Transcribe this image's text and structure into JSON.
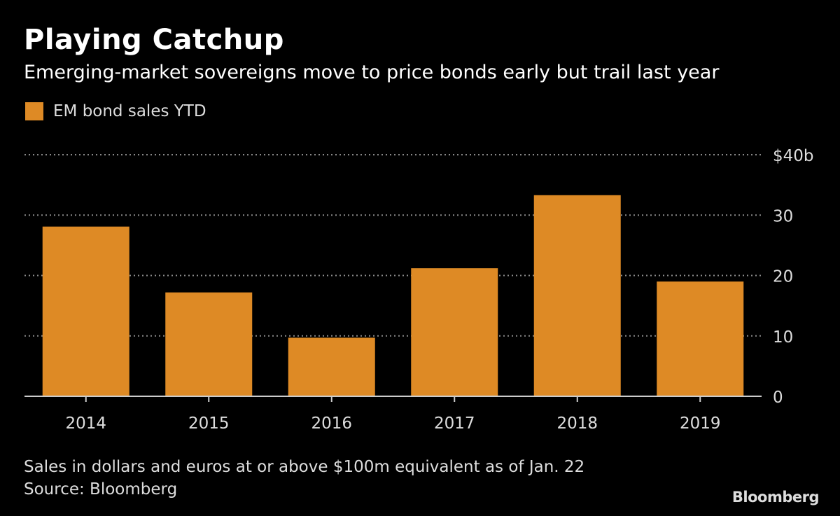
{
  "chart_data": {
    "type": "bar",
    "title": "Playing Catchup",
    "subtitle": "Emerging-market sovereigns move to price bonds early but trail last year",
    "legend": [
      {
        "name": "EM bond sales YTD",
        "color": "#DE8A25"
      }
    ],
    "legend_placement": "top-left",
    "categories": [
      "2014",
      "2015",
      "2016",
      "2017",
      "2018",
      "2019"
    ],
    "series": [
      {
        "name": "EM bond sales YTD",
        "values": [
          28.1,
          17.2,
          9.7,
          21.2,
          33.3,
          19.0
        ]
      }
    ],
    "ylim": [
      0,
      40
    ],
    "yticks": [
      0,
      10,
      20,
      30,
      40
    ],
    "ytick_labels": [
      "0",
      "10",
      "20",
      "30",
      "$40b"
    ],
    "y_axis_side": "right",
    "grid": true,
    "xlabel": "",
    "ylabel": ""
  },
  "footnotes": [
    "Sales in dollars and euros at or above $100m equivalent as of Jan. 22",
    "Source: Bloomberg"
  ],
  "brand": "Bloomberg"
}
